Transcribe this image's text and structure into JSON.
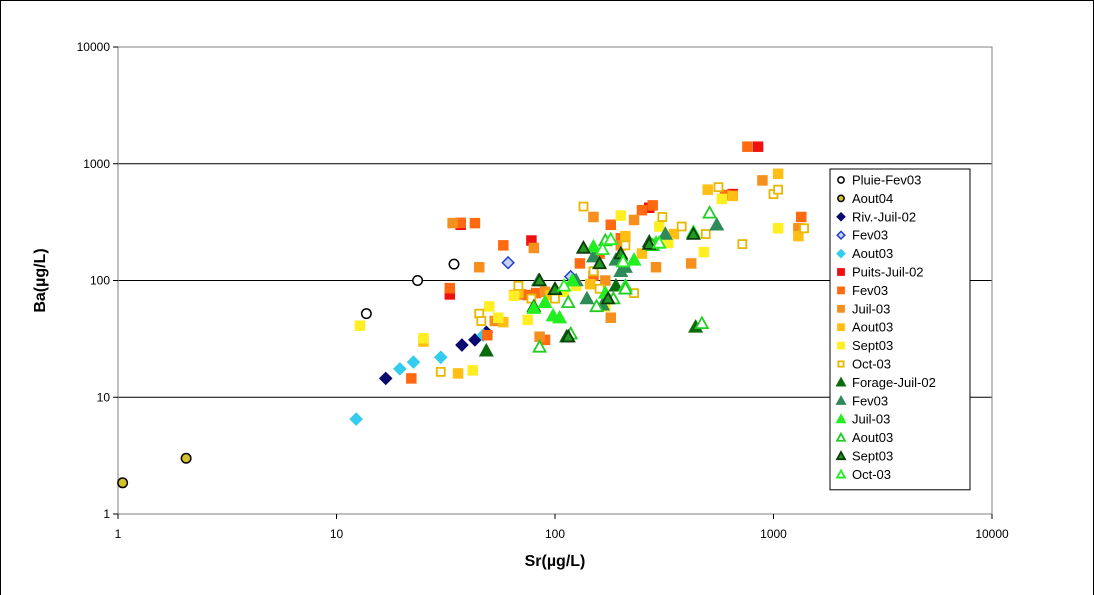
{
  "chart_data": {
    "type": "scatter",
    "title": "",
    "xlabel": "Sr(µg/L)",
    "ylabel": "Ba(µg/L)",
    "xscale": "log",
    "yscale": "log",
    "xlim": [
      1,
      10000
    ],
    "ylim": [
      1,
      10000
    ],
    "grid": "horizontal major gridlines",
    "legend_position": "right",
    "x_ticks": [
      "1",
      "10",
      "100",
      "1000",
      "10000"
    ],
    "y_ticks": [
      "1",
      "10",
      "100",
      "1000",
      "10000"
    ],
    "series": [
      {
        "name": "Pluie-Fev03",
        "marker": "circle",
        "fill": "#ffffff",
        "stroke": "#000000",
        "points": [
          [
            13.7,
            52
          ],
          [
            23.5,
            100
          ],
          [
            34.5,
            138
          ]
        ]
      },
      {
        "name": "Aout04",
        "marker": "circle",
        "fill": "#d4c02a",
        "stroke": "#000000",
        "points": [
          [
            1.05,
            1.85
          ],
          [
            2.05,
            3.0
          ]
        ]
      },
      {
        "name": "Riv.-Juil-02",
        "marker": "diamond",
        "fill": "#0a0a6e",
        "stroke": "#0a0a6e",
        "points": [
          [
            16.8,
            14.5
          ],
          [
            37.5,
            28
          ],
          [
            43,
            31
          ],
          [
            48.5,
            36
          ]
        ]
      },
      {
        "name": "Fev03",
        "marker": "diamond",
        "fill": "#c8d2f0",
        "stroke": "#1f3fd0",
        "points": [
          [
            61,
            142
          ],
          [
            118,
            108
          ]
        ]
      },
      {
        "name": "Aout03",
        "marker": "diamond",
        "fill": "#33ccee",
        "stroke": "#33ccee",
        "points": [
          [
            12.3,
            6.5
          ],
          [
            19.5,
            17.5
          ],
          [
            22.5,
            20
          ],
          [
            30,
            22
          ],
          [
            47,
            34
          ]
        ]
      },
      {
        "name": "Puits-Juil-02",
        "marker": "square",
        "fill": "#ee1111",
        "stroke": "#ee1111",
        "points": [
          [
            33,
            76
          ],
          [
            37,
            300
          ],
          [
            78,
            220
          ],
          [
            270,
            420
          ],
          [
            650,
            550
          ],
          [
            850,
            1400
          ]
        ]
      },
      {
        "name": "Fev03",
        "marker": "square",
        "fill": "#ff6a10",
        "stroke": "#ff6a10",
        "points": [
          [
            22,
            14.5
          ],
          [
            33,
            86
          ],
          [
            37,
            312
          ],
          [
            43,
            310
          ],
          [
            49,
            34
          ],
          [
            58,
            200
          ],
          [
            70,
            76
          ],
          [
            75,
            75
          ],
          [
            82,
            78
          ],
          [
            90,
            31
          ],
          [
            130,
            140
          ],
          [
            150,
            110
          ],
          [
            160,
            170
          ],
          [
            180,
            300
          ],
          [
            200,
            230
          ],
          [
            250,
            400
          ],
          [
            280,
            440
          ],
          [
            600,
            540
          ],
          [
            760,
            1400
          ],
          [
            1340,
            350
          ]
        ]
      },
      {
        "name": "Juil-03",
        "marker": "square",
        "fill": "#f5901e",
        "stroke": "#f5901e",
        "points": [
          [
            34,
            310
          ],
          [
            45,
            130
          ],
          [
            53,
            45
          ],
          [
            65,
            75
          ],
          [
            80,
            190
          ],
          [
            85,
            33
          ],
          [
            90,
            80
          ],
          [
            150,
            350
          ],
          [
            170,
            100
          ],
          [
            180,
            48
          ],
          [
            200,
            200
          ],
          [
            230,
            330
          ],
          [
            290,
            130
          ],
          [
            420,
            140
          ],
          [
            890,
            720
          ],
          [
            1300,
            280
          ]
        ]
      },
      {
        "name": "Aout03",
        "marker": "square",
        "fill": "#ffbe14",
        "stroke": "#ffbe14",
        "points": [
          [
            25,
            30
          ],
          [
            36,
            16
          ],
          [
            58,
            44
          ],
          [
            68,
            78
          ],
          [
            95,
            75
          ],
          [
            145,
            93
          ],
          [
            210,
            240
          ],
          [
            250,
            170
          ],
          [
            350,
            250
          ],
          [
            500,
            600
          ],
          [
            650,
            530
          ],
          [
            1050,
            820
          ],
          [
            1300,
            240
          ]
        ]
      },
      {
        "name": "Sept03",
        "marker": "square",
        "fill": "#ffee22",
        "stroke": "#ffee22",
        "points": [
          [
            12.8,
            41
          ],
          [
            25,
            32
          ],
          [
            42,
            17
          ],
          [
            50,
            60
          ],
          [
            55,
            48
          ],
          [
            65,
            74
          ],
          [
            75,
            46
          ],
          [
            110,
            80
          ],
          [
            125,
            90
          ],
          [
            170,
            60
          ],
          [
            200,
            360
          ],
          [
            300,
            290
          ],
          [
            330,
            210
          ],
          [
            480,
            175
          ],
          [
            580,
            500
          ],
          [
            1050,
            280
          ]
        ]
      },
      {
        "name": "Oct-03",
        "marker": "square",
        "fill": "#ffffff",
        "stroke": "#e6b800",
        "points": [
          [
            30,
            16.5
          ],
          [
            45,
            52
          ],
          [
            46,
            45
          ],
          [
            68,
            90
          ],
          [
            78,
            70
          ],
          [
            100,
            70
          ],
          [
            135,
            430
          ],
          [
            150,
            120
          ],
          [
            160,
            85
          ],
          [
            210,
            200
          ],
          [
            230,
            78
          ],
          [
            310,
            350
          ],
          [
            380,
            290
          ],
          [
            490,
            250
          ],
          [
            560,
            630
          ],
          [
            720,
            205
          ],
          [
            1000,
            550
          ],
          [
            1050,
            600
          ],
          [
            1380,
            280
          ]
        ]
      },
      {
        "name": "Forage-Juil-02",
        "marker": "triangle",
        "fill": "#0b6a0b",
        "stroke": "#0b6a0b",
        "points": [
          [
            48.5,
            25
          ],
          [
            80,
            60
          ],
          [
            100,
            85
          ],
          [
            113,
            33
          ],
          [
            135,
            190
          ],
          [
            190,
            90
          ],
          [
            200,
            165
          ],
          [
            270,
            215
          ],
          [
            440,
            40
          ]
        ]
      },
      {
        "name": "Fev03",
        "marker": "triangle",
        "fill": "#2e8b57",
        "stroke": "#2e8b57",
        "points": [
          [
            84,
            100
          ],
          [
            125,
            100
          ],
          [
            140,
            70
          ],
          [
            150,
            160
          ],
          [
            165,
            62
          ],
          [
            190,
            150
          ],
          [
            200,
            120
          ],
          [
            210,
            130
          ],
          [
            320,
            250
          ],
          [
            550,
            300
          ]
        ]
      },
      {
        "name": "Juil-03",
        "marker": "triangle",
        "fill": "#22ee22",
        "stroke": "#22ee22",
        "points": [
          [
            80,
            58
          ],
          [
            90,
            65
          ],
          [
            98,
            50
          ],
          [
            105,
            48
          ],
          [
            120,
            100
          ],
          [
            150,
            195
          ],
          [
            170,
            78
          ],
          [
            210,
            90
          ],
          [
            230,
            150
          ],
          [
            290,
            210
          ],
          [
            430,
            260
          ]
        ]
      },
      {
        "name": "Aout03",
        "marker": "triangle",
        "fill": "#ffffff",
        "stroke": "#22cc22",
        "points": [
          [
            85,
            27
          ],
          [
            115,
            65
          ],
          [
            118,
            35
          ],
          [
            155,
            60
          ],
          [
            170,
            220
          ],
          [
            185,
            70
          ],
          [
            210,
            85
          ],
          [
            280,
            200
          ],
          [
            470,
            43
          ],
          [
            510,
            380
          ]
        ]
      },
      {
        "name": "Sept03",
        "marker": "triangle",
        "fill": "#229922",
        "stroke": "#0b3d0b",
        "points": [
          [
            85,
            100
          ],
          [
            100,
            84
          ],
          [
            115,
            33
          ],
          [
            135,
            190
          ],
          [
            160,
            140
          ],
          [
            175,
            70
          ],
          [
            200,
            170
          ],
          [
            270,
            205
          ],
          [
            430,
            250
          ]
        ]
      },
      {
        "name": "Oct-03",
        "marker": "triangle",
        "fill": "#ffffff",
        "stroke": "#22ee22",
        "points": [
          [
            110,
            90
          ],
          [
            165,
            185
          ],
          [
            180,
            225
          ],
          [
            205,
            145
          ],
          [
            300,
            210
          ]
        ]
      }
    ]
  }
}
